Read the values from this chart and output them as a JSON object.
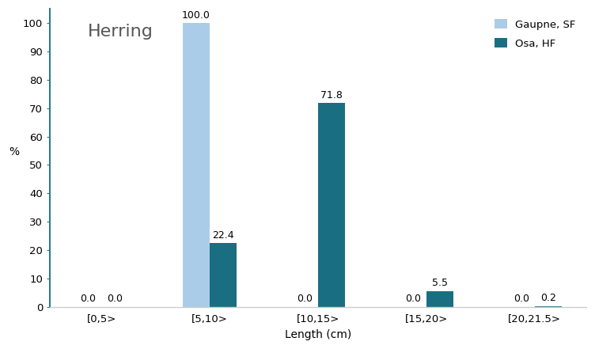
{
  "title": "Herring",
  "categories": [
    "[0,5>",
    "[5,10>",
    "[10,15>",
    "[15,20>",
    "[20,21.5>"
  ],
  "gaupne_sf": [
    0.0,
    100.0,
    0.0,
    0.0,
    0.0
  ],
  "osa_hf": [
    0.0,
    22.4,
    71.8,
    5.5,
    0.2
  ],
  "color_gaupne": "#aacce8",
  "color_osa": "#1a6e82",
  "spine_color": "#2a7a8c",
  "ylabel": "%",
  "xlabel": "Length (cm)",
  "ylim": [
    0,
    105
  ],
  "yticks": [
    0,
    10,
    20,
    30,
    40,
    50,
    60,
    70,
    80,
    90,
    100
  ],
  "legend_labels": [
    "Gaupne, SF",
    "Osa, HF"
  ],
  "bar_width": 0.25,
  "title_fontsize": 16,
  "label_fontsize": 10,
  "tick_fontsize": 9.5,
  "annotation_fontsize": 9,
  "title_color": "#555555",
  "background_color": "#ffffff"
}
